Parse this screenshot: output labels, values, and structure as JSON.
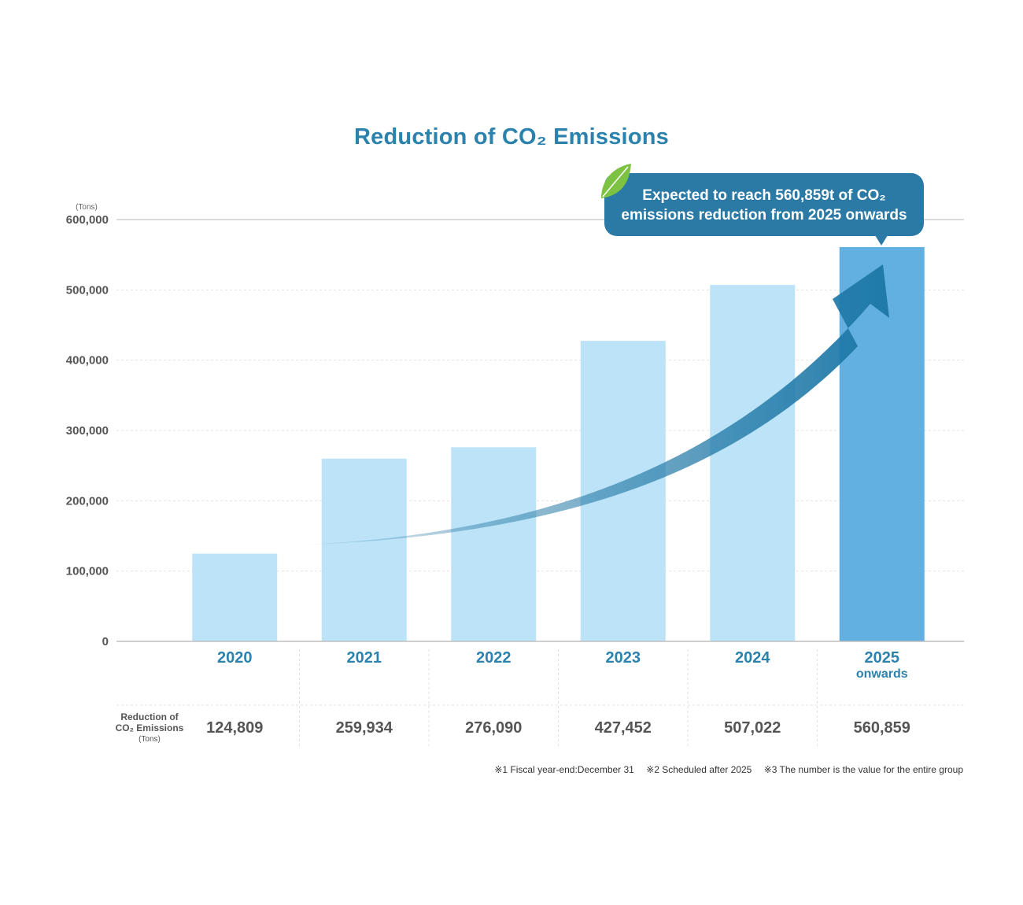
{
  "chart_data": {
    "type": "bar",
    "title": "Reduction of CO₂ Emissions",
    "ylabel": "(Tons)",
    "ylim": [
      0,
      600000
    ],
    "yticks": [
      0,
      100000,
      200000,
      300000,
      400000,
      500000,
      600000
    ],
    "ytick_labels": [
      "0",
      "100,000",
      "200,000",
      "300,000",
      "400,000",
      "500,000",
      "600,000"
    ],
    "categories": [
      {
        "year": "2020",
        "sub": ""
      },
      {
        "year": "2021",
        "sub": ""
      },
      {
        "year": "2022",
        "sub": ""
      },
      {
        "year": "2023",
        "sub": ""
      },
      {
        "year": "2024",
        "sub": ""
      },
      {
        "year": "2025",
        "sub": "onwards"
      }
    ],
    "values": [
      124809,
      259934,
      276090,
      427452,
      507022,
      560859
    ],
    "value_labels": [
      "124,809",
      "259,934",
      "276,090",
      "427,452",
      "507,022",
      "560,859"
    ],
    "row_header": {
      "line1": "Reduction of",
      "line2": "CO₂ Emissions",
      "line3": "(Tons)"
    },
    "callout": {
      "line1": "Expected to reach 560,859t of CO₂",
      "line2": "emissions reduction from 2025 onwards"
    },
    "footnotes": [
      "※1  Fiscal year-end:December 31",
      "※2  Scheduled after 2025",
      "※3  The number is the value for the entire group"
    ],
    "colors": {
      "bar": "#bce3f7",
      "bar_highlight": "#62b0e2",
      "accent": "#2a82ad",
      "callout": "#2a7aa5",
      "leaf": "#7dc242"
    }
  }
}
